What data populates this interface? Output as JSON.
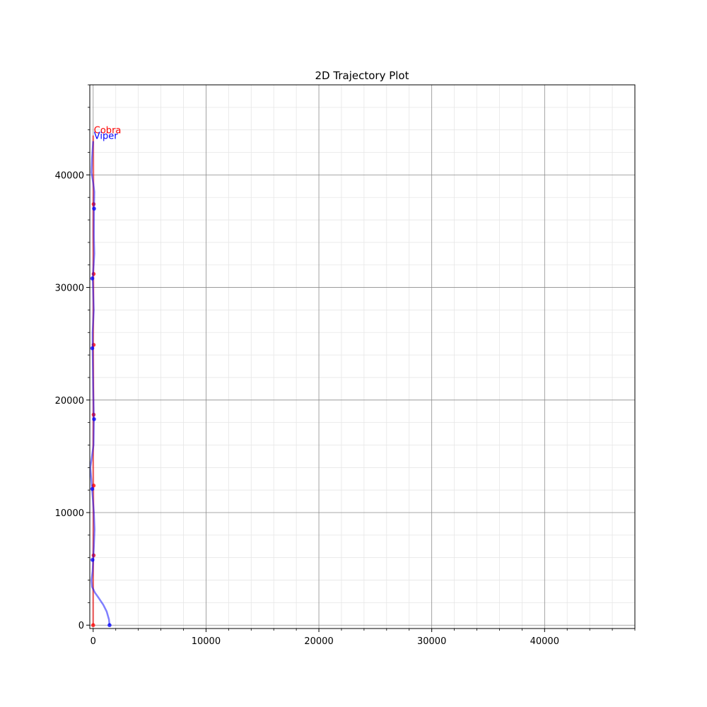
{
  "chart_data": {
    "type": "line",
    "title": "2D Trajectory Plot",
    "xlabel": "",
    "ylabel": "",
    "xlim": [
      -300,
      48000
    ],
    "ylim": [
      -300,
      48000
    ],
    "xticks": [
      0,
      10000,
      20000,
      30000,
      40000
    ],
    "yticks": [
      0,
      10000,
      20000,
      30000,
      40000
    ],
    "grid": true,
    "minor_grid": true,
    "series": [
      {
        "name": "Cobra",
        "color": "#ff0000",
        "points": [
          [
            0,
            0
          ],
          [
            0,
            5000
          ],
          [
            20,
            10000
          ],
          [
            0,
            15000
          ],
          [
            20,
            20000
          ],
          [
            0,
            25000
          ],
          [
            20,
            30000
          ],
          [
            0,
            35000
          ],
          [
            20,
            40000
          ],
          [
            0,
            43500
          ]
        ],
        "markers": [
          [
            0,
            0
          ],
          [
            40,
            6200
          ],
          [
            40,
            12400
          ],
          [
            40,
            18700
          ],
          [
            40,
            24900
          ],
          [
            40,
            31200
          ],
          [
            40,
            37400
          ]
        ]
      },
      {
        "name": "Viper",
        "color": "#0000ff",
        "points": [
          [
            1450,
            0
          ],
          [
            1400,
            500
          ],
          [
            1200,
            1200
          ],
          [
            900,
            1800
          ],
          [
            500,
            2400
          ],
          [
            150,
            2900
          ],
          [
            -100,
            3400
          ],
          [
            -150,
            4000
          ],
          [
            -50,
            4800
          ],
          [
            0,
            5800
          ],
          [
            60,
            7000
          ],
          [
            120,
            8500
          ],
          [
            60,
            10000
          ],
          [
            -100,
            12100
          ],
          [
            -250,
            14000
          ],
          [
            30,
            16000
          ],
          [
            60,
            18300
          ],
          [
            0,
            21000
          ],
          [
            -50,
            24600
          ],
          [
            -50,
            26000
          ],
          [
            50,
            28000
          ],
          [
            -40,
            30800
          ],
          [
            40,
            32000
          ],
          [
            100,
            33000
          ],
          [
            60,
            34500
          ],
          [
            70,
            37000
          ],
          [
            100,
            38500
          ],
          [
            0,
            39300
          ],
          [
            -150,
            40200
          ],
          [
            -100,
            41500
          ],
          [
            0,
            43000
          ]
        ],
        "markers": [
          [
            1450,
            0
          ],
          [
            -60,
            5800
          ],
          [
            -80,
            12100
          ],
          [
            80,
            18300
          ],
          [
            -80,
            24600
          ],
          [
            -80,
            30800
          ],
          [
            80,
            37000
          ]
        ]
      }
    ],
    "annotations": [
      {
        "text": "Cobra",
        "color": "#ff0000",
        "x": 0,
        "y": 43700
      },
      {
        "text": "Viper",
        "color": "#0000ff",
        "x": 0,
        "y": 43200
      }
    ]
  }
}
